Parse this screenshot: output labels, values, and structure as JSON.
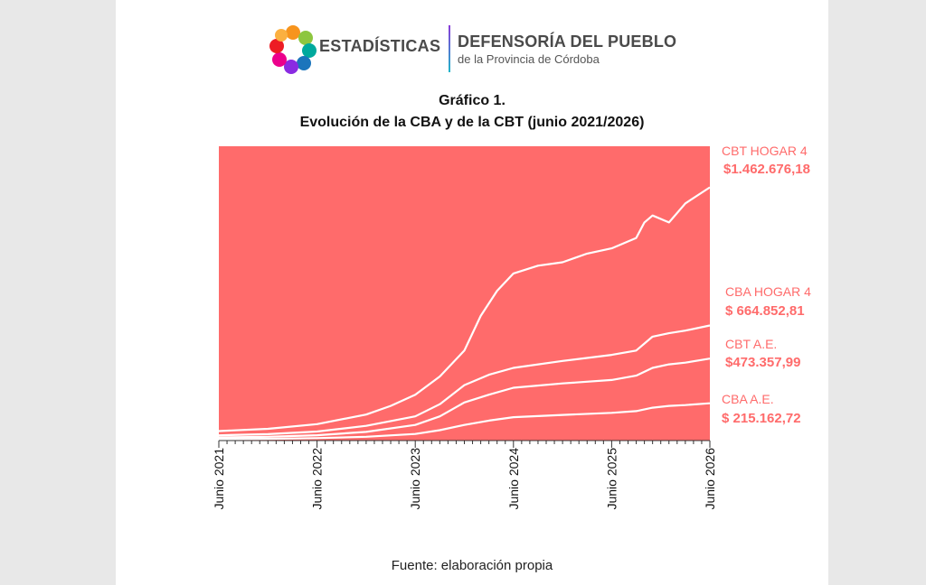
{
  "header": {
    "brand_stats": "ESTADÍSTICAS",
    "brand_org": "DEFENSORÍA DEL PUEBLO",
    "brand_org_sub": "de la Provincia de Córdoba"
  },
  "chart_data": {
    "type": "line",
    "title": "Gráfico 1.",
    "subtitle": "Evolución de la CBA y de la CBT (junio 2021/2026)",
    "x_tick_labels": [
      "Junio 2021",
      "Junio 2022",
      "Junio 2023",
      "Junio 2024",
      "Junio 2025",
      "Junio  2026"
    ],
    "xlim": [
      "2021-06",
      "2026-06"
    ],
    "ylim": [
      0,
      1700000
    ],
    "grid": false,
    "y_axis_visible": false,
    "colors": {
      "plot_background": "#ff6b6b",
      "line": "#ffffff",
      "label": "#ff6b6b"
    },
    "series": [
      {
        "name": "CBT HOGAR 4",
        "end_label": "$1.462.676,18",
        "points": [
          [
            "2021-06",
            55000
          ],
          [
            "2021-12",
            68000
          ],
          [
            "2022-06",
            95000
          ],
          [
            "2022-12",
            150000
          ],
          [
            "2023-03",
            200000
          ],
          [
            "2023-06",
            265000
          ],
          [
            "2023-09",
            370000
          ],
          [
            "2023-12",
            520000
          ],
          [
            "2024-02",
            720000
          ],
          [
            "2024-04",
            865000
          ],
          [
            "2024-06",
            965000
          ],
          [
            "2024-09",
            1010000
          ],
          [
            "2024-12",
            1030000
          ],
          [
            "2025-03",
            1080000
          ],
          [
            "2025-06",
            1110000
          ],
          [
            "2025-09",
            1170000
          ],
          [
            "2025-10",
            1260000
          ],
          [
            "2025-11",
            1300000
          ],
          [
            "2026-01",
            1260000
          ],
          [
            "2026-03",
            1370000
          ],
          [
            "2026-06",
            1462676.18
          ]
        ]
      },
      {
        "name": "CBA HOGAR 4",
        "end_label": "$ 664.852,81",
        "points": [
          [
            "2021-06",
            30000
          ],
          [
            "2021-12",
            37000
          ],
          [
            "2022-06",
            52000
          ],
          [
            "2022-12",
            85000
          ],
          [
            "2023-06",
            140000
          ],
          [
            "2023-09",
            210000
          ],
          [
            "2023-12",
            320000
          ],
          [
            "2024-03",
            380000
          ],
          [
            "2024-06",
            420000
          ],
          [
            "2024-12",
            460000
          ],
          [
            "2025-06",
            495000
          ],
          [
            "2025-09",
            520000
          ],
          [
            "2025-11",
            600000
          ],
          [
            "2026-01",
            620000
          ],
          [
            "2026-03",
            635000
          ],
          [
            "2026-06",
            664852.81
          ]
        ]
      },
      {
        "name": "CBT A.E.",
        "end_label": "$473.357,99",
        "points": [
          [
            "2021-06",
            18000
          ],
          [
            "2021-12",
            22000
          ],
          [
            "2022-06",
            31000
          ],
          [
            "2022-12",
            50000
          ],
          [
            "2023-06",
            90000
          ],
          [
            "2023-09",
            140000
          ],
          [
            "2023-12",
            220000
          ],
          [
            "2024-03",
            265000
          ],
          [
            "2024-06",
            305000
          ],
          [
            "2024-12",
            330000
          ],
          [
            "2025-06",
            350000
          ],
          [
            "2025-09",
            375000
          ],
          [
            "2025-11",
            420000
          ],
          [
            "2026-01",
            440000
          ],
          [
            "2026-03",
            450000
          ],
          [
            "2026-06",
            473357.99
          ]
        ]
      },
      {
        "name": "CBA A.E.",
        "end_label": "$ 215.162,72",
        "points": [
          [
            "2021-06",
            8000
          ],
          [
            "2021-12",
            10000
          ],
          [
            "2022-06",
            14000
          ],
          [
            "2022-12",
            22000
          ],
          [
            "2023-06",
            38000
          ],
          [
            "2023-09",
            60000
          ],
          [
            "2023-12",
            90000
          ],
          [
            "2024-03",
            115000
          ],
          [
            "2024-06",
            135000
          ],
          [
            "2024-12",
            148000
          ],
          [
            "2025-06",
            160000
          ],
          [
            "2025-09",
            170000
          ],
          [
            "2025-11",
            190000
          ],
          [
            "2026-01",
            200000
          ],
          [
            "2026-03",
            205000
          ],
          [
            "2026-06",
            215162.72
          ]
        ]
      }
    ]
  },
  "footer": {
    "source": "Fuente: elaboración propia"
  }
}
